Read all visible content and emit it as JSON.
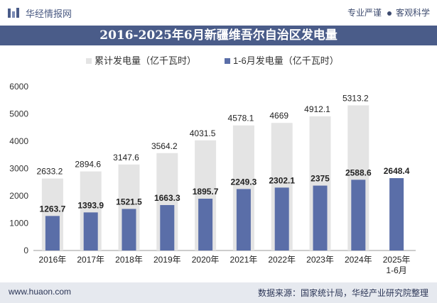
{
  "header": {
    "brand": "华经情报网",
    "tagline_left": "专业严谨",
    "tagline_right": "客观科学"
  },
  "title": "2016-2025年6月新疆维吾尔自治区发电量",
  "colors": {
    "title_bg": "#4a5c89",
    "cumulative_bar": "#e4e4e4",
    "monthly_bar": "#5a6ea8"
  },
  "chart_data": {
    "type": "bar",
    "categories": [
      "2016年",
      "2017年",
      "2018年",
      "2019年",
      "2020年",
      "2021年",
      "2022年",
      "2023年",
      "2024年",
      "2025年\n1-6月"
    ],
    "series": [
      {
        "name": "累计发电量（亿千瓦时）",
        "values": [
          2633.2,
          2894.6,
          3147.6,
          3564.2,
          4031.5,
          4578.1,
          4669,
          4912.1,
          5313.2,
          null
        ]
      },
      {
        "name": "1-6月发电量（亿千瓦时）",
        "values": [
          1263.7,
          1393.9,
          1521.5,
          1663.3,
          1895.7,
          2249.3,
          2302.1,
          2375,
          2588.6,
          2648.4
        ]
      }
    ],
    "ylim": [
      0,
      6000
    ],
    "yticks": [
      0,
      1000,
      2000,
      3000,
      4000,
      5000,
      6000
    ],
    "legend": "top",
    "grid": false
  },
  "footer": {
    "site": "www.huaon.com",
    "source": "数据来源：国家统计局，华经产业研究院整理"
  }
}
